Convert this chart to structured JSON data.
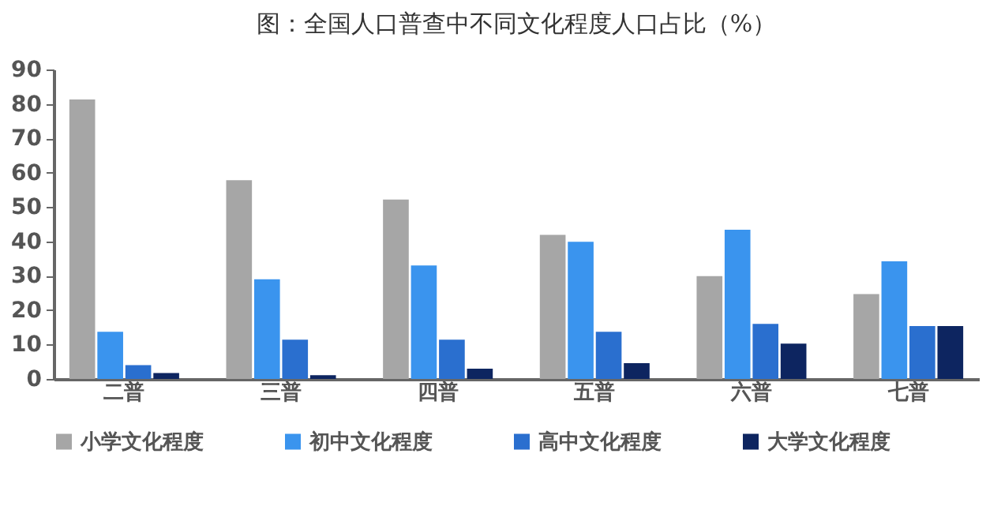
{
  "chart_data": {
    "type": "bar",
    "title": "图：全国人口普查中不同文化程度人口占比（%）",
    "categories": [
      "二普",
      "三普",
      "四普",
      "五普",
      "六普",
      "七普"
    ],
    "series": [
      {
        "name": "小学文化程度",
        "color": "#a6a6a6",
        "values": [
          81.3,
          57.8,
          52.2,
          41.9,
          29.9,
          24.7
        ]
      },
      {
        "name": "初中文化程度",
        "color": "#3a94ee",
        "values": [
          13.7,
          29.0,
          33.0,
          39.9,
          43.4,
          34.2
        ]
      },
      {
        "name": "高中文化程度",
        "color": "#2a6fcf",
        "values": [
          4.0,
          11.4,
          11.4,
          13.7,
          16.0,
          15.4
        ]
      },
      {
        "name": "大学文化程度",
        "color": "#0d2560",
        "values": [
          1.7,
          1.1,
          3.0,
          4.6,
          10.3,
          15.4
        ]
      }
    ],
    "ylim": [
      0,
      90
    ],
    "yticks": [
      0,
      10,
      20,
      30,
      40,
      50,
      60,
      70,
      80,
      90
    ],
    "grid": false,
    "legend": "bottom"
  }
}
